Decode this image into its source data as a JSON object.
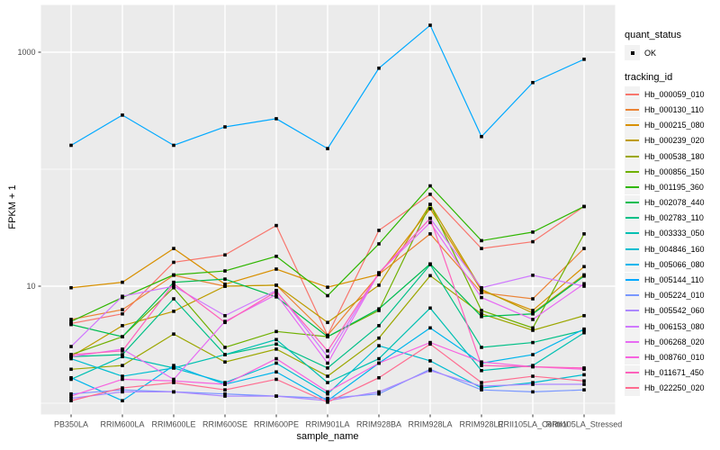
{
  "figure": {
    "x_axis_label": "sample_name",
    "y_axis_label": "FPKM + 1"
  },
  "legend": {
    "quant_status_title": "quant_status",
    "quant_status_items": [
      {
        "label": "OK"
      }
    ],
    "tracking_title": "tracking_id"
  },
  "colors": {
    "panel_bg": "#EBEBEB",
    "gridline": "#FFFFFF",
    "tick_label": "#4D4D4D",
    "tick_mark": "#333333",
    "point": "#000000",
    "legend_key_bg": "#F2F2F2"
  },
  "chart_data": {
    "type": "line",
    "title": "",
    "xlabel": "sample_name",
    "ylabel": "FPKM + 1",
    "y_scale": "log10",
    "ylim": [
      0.9,
      2500
    ],
    "grid": true,
    "legend_position": "right",
    "point_shape": "small-black-square",
    "y_ticks": [
      {
        "value": 10,
        "label": "10"
      },
      {
        "value": 1000,
        "label": "1000"
      }
    ],
    "y_minor_gridlines": [
      1,
      100
    ],
    "categories": [
      "PB350LA",
      "RRIM600LA",
      "RRIM600LE",
      "RRIM600SE",
      "RRIM600PE",
      "RRIM901LA",
      "RRIM928BA",
      "RRIM928LA",
      "RRIM928LE",
      "RRII105LA_Control",
      "RRII105LA_Stressed"
    ],
    "series": [
      {
        "name": "Hb_000059_010",
        "color": "#F8766D",
        "values": [
          4.8,
          5.8,
          16,
          18.5,
          33,
          3.8,
          30,
          61,
          21,
          24,
          48
        ]
      },
      {
        "name": "Hb_000130_110",
        "color": "#EB8335",
        "values": [
          5.2,
          6.3,
          12.4,
          10.0,
          10.2,
          3.8,
          12.6,
          28,
          8.8,
          7.8,
          21
        ]
      },
      {
        "name": "Hb_000215_080",
        "color": "#D89000",
        "values": [
          9.7,
          10.8,
          21,
          10.4,
          14,
          9.8,
          12.6,
          46,
          9.2,
          6.2,
          14.7
        ]
      },
      {
        "name": "Hb_000239_020",
        "color": "#BE9C00",
        "values": [
          2.5,
          4.6,
          6.1,
          10.0,
          10.2,
          4.9,
          10.2,
          50,
          9.4,
          5.9,
          12.5
        ]
      },
      {
        "name": "Hb_000538_180",
        "color": "#9CA700",
        "values": [
          1.95,
          2.1,
          3.9,
          2.25,
          2.9,
          1.7,
          3.6,
          12.3,
          5.8,
          4.2,
          5.6
        ]
      },
      {
        "name": "Hb_000856_150",
        "color": "#6FB000",
        "values": [
          2.6,
          3.7,
          9.7,
          3.0,
          4.1,
          3.7,
          6.2,
          50,
          6.2,
          4.4,
          28
        ]
      },
      {
        "name": "Hb_001195_360",
        "color": "#2FB600",
        "values": [
          5.0,
          8.0,
          12.5,
          13.5,
          18,
          8.3,
          23,
          72,
          24.5,
          29,
          48
        ]
      },
      {
        "name": "Hb_002078_440",
        "color": "#00BC51",
        "values": [
          4.7,
          3.7,
          10.8,
          11.5,
          8.1,
          3.7,
          6.4,
          15.5,
          5.5,
          5.8,
          12.2
        ]
      },
      {
        "name": "Hb_002783_110",
        "color": "#00C087",
        "values": [
          2.5,
          2.6,
          7.8,
          2.6,
          3.2,
          2.0,
          4.6,
          15.3,
          3.0,
          3.3,
          4.2
        ]
      },
      {
        "name": "Hb_003333_050",
        "color": "#00C0B2",
        "values": [
          1.6,
          2.5,
          2.0,
          2.6,
          3.5,
          1.5,
          2.4,
          6.5,
          1.9,
          2.1,
          4.0
        ]
      },
      {
        "name": "Hb_004846_160",
        "color": "#00BDD1",
        "values": [
          2.4,
          1.7,
          2.0,
          1.5,
          2.2,
          1.2,
          3.1,
          2.3,
          1.35,
          1.5,
          1.75
        ]
      },
      {
        "name": "Hb_005066_080",
        "color": "#00B5EC",
        "values": [
          1.65,
          1.05,
          2.1,
          1.45,
          1.85,
          1.05,
          2.2,
          4.4,
          2.2,
          2.6,
          4.3
        ]
      },
      {
        "name": "Hb_005144_110",
        "color": "#00A9FF",
        "values": [
          160,
          290,
          160,
          230,
          270,
          150,
          730,
          1700,
          190,
          550,
          870
        ]
      },
      {
        "name": "Hb_005224_010",
        "color": "#7997FF",
        "values": [
          1.2,
          1.3,
          1.25,
          1.2,
          1.15,
          1.1,
          1.2,
          1.95,
          1.3,
          1.25,
          1.3
        ]
      },
      {
        "name": "Hb_005542_060",
        "color": "#AC88FF",
        "values": [
          1.1,
          1.25,
          1.25,
          1.15,
          1.15,
          1.05,
          1.25,
          1.9,
          1.4,
          1.45,
          1.45
        ]
      },
      {
        "name": "Hb_006153_080",
        "color": "#CF78FF",
        "values": [
          3.05,
          8.2,
          10.0,
          5.6,
          9.2,
          2.5,
          13,
          38,
          9.7,
          12.4,
          10.0
        ]
      },
      {
        "name": "Hb_006268_020",
        "color": "#E76BF3",
        "values": [
          2.5,
          2.9,
          1.6,
          5.0,
          8.5,
          2.2,
          13,
          35,
          8.0,
          5.2,
          10.5
        ]
      },
      {
        "name": "Hb_008760_010",
        "color": "#F763DF",
        "values": [
          1.15,
          1.6,
          1.55,
          1.45,
          2.4,
          1.25,
          2.2,
          3.3,
          2.25,
          2.05,
          1.95
        ]
      },
      {
        "name": "Hb_011671_450",
        "color": "#FF62BC",
        "values": [
          2.6,
          2.8,
          10.5,
          4.9,
          9.0,
          2.8,
          13,
          38,
          2.1,
          2.05,
          2.0
        ]
      },
      {
        "name": "Hb_022250_020",
        "color": "#FF6C90",
        "values": [
          1.05,
          1.35,
          1.5,
          1.3,
          1.6,
          1.02,
          1.65,
          3.2,
          1.5,
          1.7,
          1.55
        ]
      }
    ]
  }
}
